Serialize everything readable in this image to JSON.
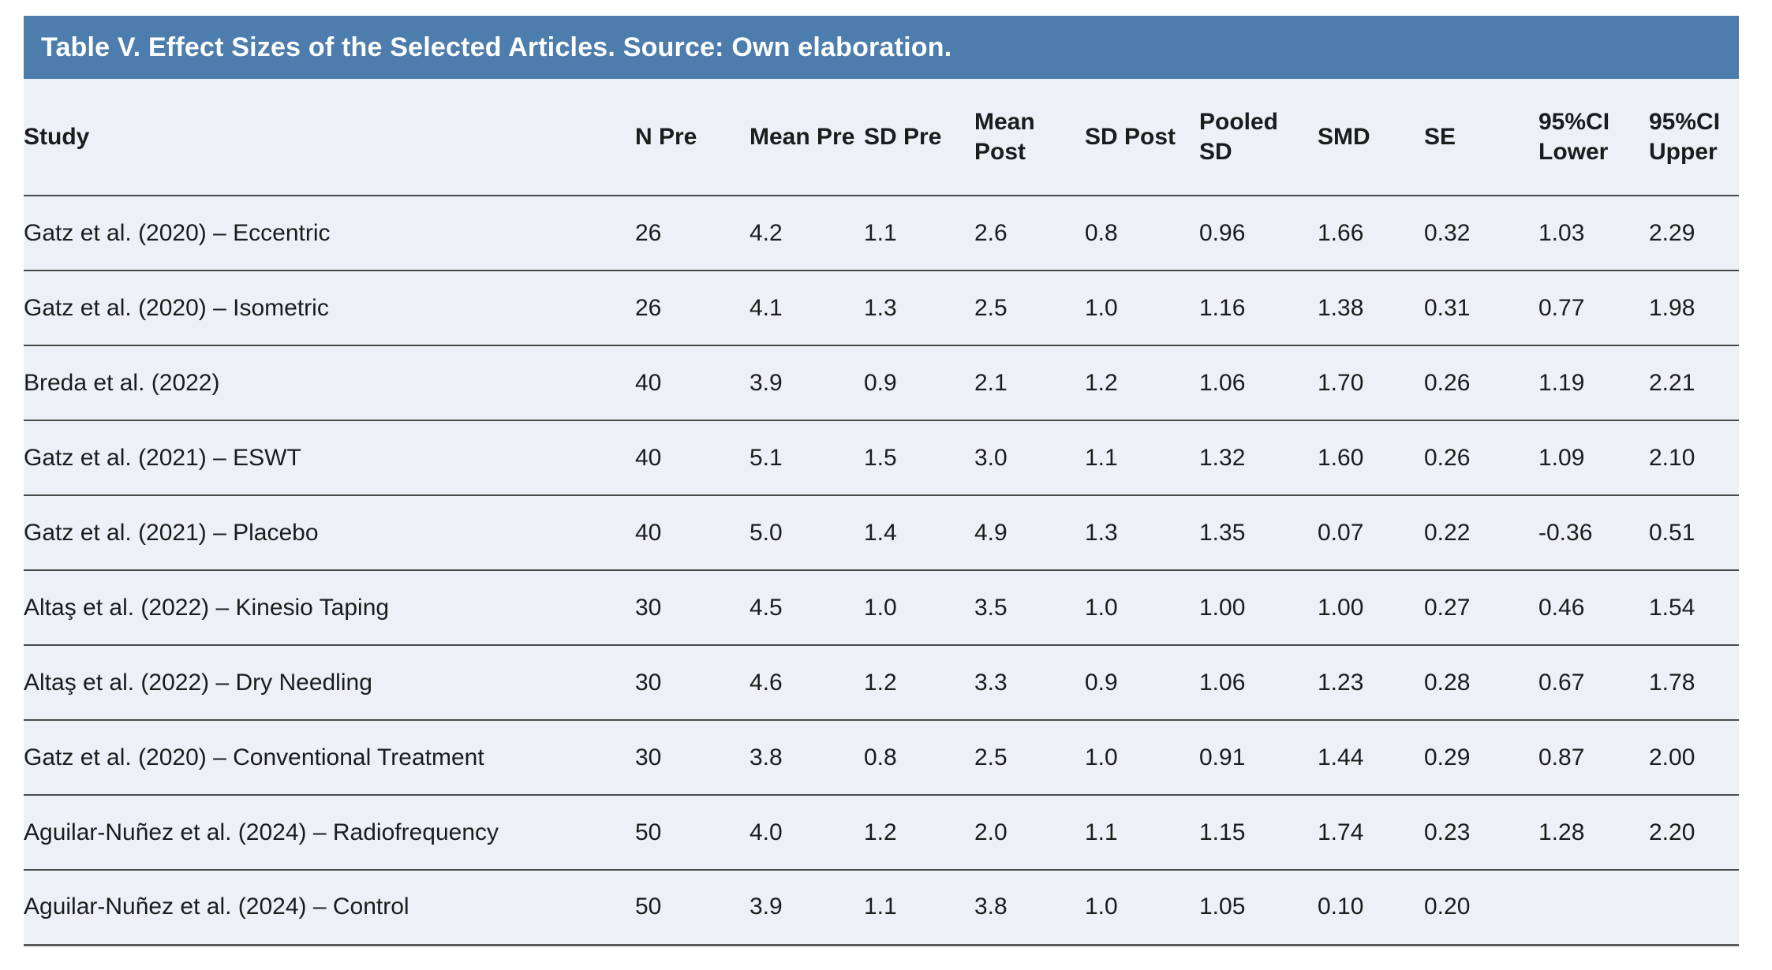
{
  "title_bar": {
    "text": "Table V. Effect Sizes of the Selected Articles. Source: Own elaboration."
  },
  "colors": {
    "title_bar_bg": "#4C7DAC",
    "title_text": "#FFFFFF",
    "table_bg": "#EDF0F7",
    "row_divider": "#4A4A4A",
    "body_text": "#1C1C1C"
  },
  "table": {
    "columns": [
      "Study",
      "N Pre",
      "Mean Pre",
      "SD Pre",
      "Mean Post",
      "SD Post",
      "Pooled SD",
      "SMD",
      "SE",
      "95%CI Lower",
      "95%CI Upper"
    ],
    "rows": [
      [
        "Gatz et al. (2020) – Eccentric",
        "26",
        "4.2",
        "1.1",
        "2.6",
        "0.8",
        "0.96",
        "1.66",
        "0.32",
        "1.03",
        "2.29"
      ],
      [
        "Gatz et al. (2020) – Isometric",
        "26",
        "4.1",
        "1.3",
        "2.5",
        "1.0",
        "1.16",
        "1.38",
        "0.31",
        "0.77",
        "1.98"
      ],
      [
        "Breda et al. (2022)",
        "40",
        "3.9",
        "0.9",
        "2.1",
        "1.2",
        "1.06",
        "1.70",
        "0.26",
        "1.19",
        "2.21"
      ],
      [
        "Gatz et al. (2021) – ESWT",
        "40",
        "5.1",
        "1.5",
        "3.0",
        "1.1",
        "1.32",
        "1.60",
        "0.26",
        "1.09",
        "2.10"
      ],
      [
        "Gatz et al. (2021) – Placebo",
        "40",
        "5.0",
        "1.4",
        "4.9",
        "1.3",
        "1.35",
        "0.07",
        "0.22",
        "-0.36",
        "0.51"
      ],
      [
        "Altaş et al. (2022) – Kinesio Taping",
        "30",
        "4.5",
        "1.0",
        "3.5",
        "1.0",
        "1.00",
        "1.00",
        "0.27",
        "0.46",
        "1.54"
      ],
      [
        "Altaş et al. (2022) – Dry Needling",
        "30",
        "4.6",
        "1.2",
        "3.3",
        "0.9",
        "1.06",
        "1.23",
        "0.28",
        "0.67",
        "1.78"
      ],
      [
        "Gatz et al. (2020) – Conventional Treatment",
        "30",
        "3.8",
        "0.8",
        "2.5",
        "1.0",
        "0.91",
        "1.44",
        "0.29",
        "0.87",
        "2.00"
      ],
      [
        "Aguilar-Nuñez et al. (2024) – Radiofrequency",
        "50",
        "4.0",
        "1.2",
        "2.0",
        "1.1",
        "1.15",
        "1.74",
        "0.23",
        "1.28",
        "2.20"
      ],
      [
        "Aguilar-Nuñez et al. (2024) – Control",
        "50",
        "3.9",
        "1.1",
        "3.8",
        "1.0",
        "1.05",
        "0.10",
        "0.20",
        "",
        ""
      ]
    ]
  },
  "chart_data": {
    "type": "table",
    "title": "Table V. Effect Sizes of the Selected Articles. Source: Own elaboration.",
    "columns": [
      "Study",
      "N Pre",
      "Mean Pre",
      "SD Pre",
      "Mean Post",
      "SD Post",
      "Pooled SD",
      "SMD",
      "SE",
      "95%CI Lower",
      "95%CI Upper"
    ],
    "rows": [
      [
        "Gatz et al. (2020) – Eccentric",
        26,
        4.2,
        1.1,
        2.6,
        0.8,
        0.96,
        1.66,
        0.32,
        1.03,
        2.29
      ],
      [
        "Gatz et al. (2020) – Isometric",
        26,
        4.1,
        1.3,
        2.5,
        1.0,
        1.16,
        1.38,
        0.31,
        0.77,
        1.98
      ],
      [
        "Breda et al. (2022)",
        40,
        3.9,
        0.9,
        2.1,
        1.2,
        1.06,
        1.7,
        0.26,
        1.19,
        2.21
      ],
      [
        "Gatz et al. (2021) – ESWT",
        40,
        5.1,
        1.5,
        3.0,
        1.1,
        1.32,
        1.6,
        0.26,
        1.09,
        2.1
      ],
      [
        "Gatz et al. (2021) – Placebo",
        40,
        5.0,
        1.4,
        4.9,
        1.3,
        1.35,
        0.07,
        0.22,
        -0.36,
        0.51
      ],
      [
        "Altaş et al. (2022) – Kinesio Taping",
        30,
        4.5,
        1.0,
        3.5,
        1.0,
        1.0,
        1.0,
        0.27,
        0.46,
        1.54
      ],
      [
        "Altaş et al. (2022) – Dry Needling",
        30,
        4.6,
        1.2,
        3.3,
        0.9,
        1.06,
        1.23,
        0.28,
        0.67,
        1.78
      ],
      [
        "Gatz et al. (2020) – Conventional Treatment",
        30,
        3.8,
        0.8,
        2.5,
        1.0,
        0.91,
        1.44,
        0.29,
        0.87,
        2.0
      ],
      [
        "Aguilar-Nuñez et al. (2024) – Radiofrequency",
        50,
        4.0,
        1.2,
        2.0,
        1.1,
        1.15,
        1.74,
        0.23,
        1.28,
        2.2
      ],
      [
        "Aguilar-Nuñez et al. (2024) – Control",
        50,
        3.9,
        1.1,
        3.8,
        1.0,
        1.05,
        0.1,
        0.2,
        null,
        null
      ]
    ]
  }
}
